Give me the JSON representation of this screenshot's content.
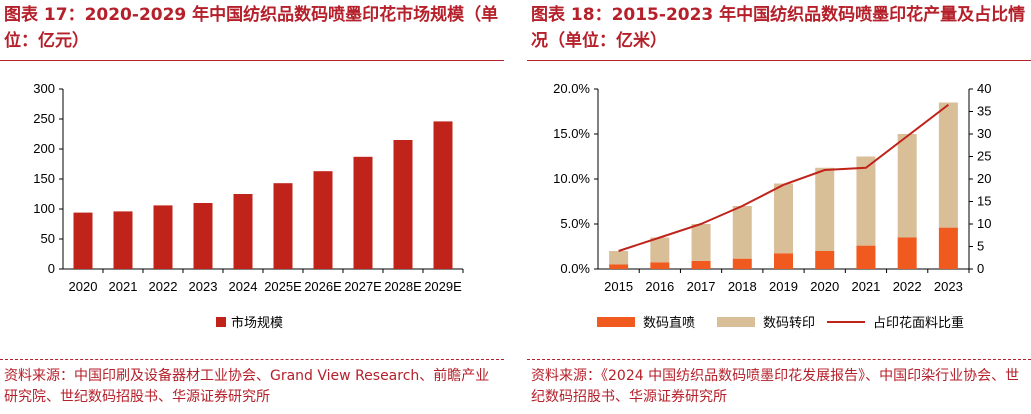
{
  "left": {
    "title": "图表 17：2020-2029 年中国纺织品数码喷墨印花市场规模（单位：亿元）",
    "source": "资料来源：中国印刷及设备器材工业协会、Grand View Research、前瞻产业研究院、世纪数码招股书、华源证券研究所",
    "chart_data": {
      "type": "bar",
      "title": "图表 17：2020-2029 年中国纺织品数码喷墨印花市场规模（单位：亿元）",
      "categories": [
        "2020",
        "2021",
        "2022",
        "2023",
        "2024",
        "2025E",
        "2026E",
        "2027E",
        "2028E",
        "2029E"
      ],
      "series": [
        {
          "name": "市场规模",
          "values": [
            94,
            96,
            106,
            110,
            125,
            143,
            163,
            187,
            215,
            246
          ],
          "color": "#c0231a"
        }
      ],
      "yticks": [
        "0",
        "50",
        "100",
        "150",
        "200",
        "250",
        "300"
      ],
      "ylim": [
        0,
        300
      ],
      "legend": "bottom-center",
      "grid": false
    }
  },
  "right": {
    "title": "图表 18：2015-2023 年中国纺织品数码喷墨印花产量及占比情况（单位：亿米）",
    "source": "资料来源：《2024 中国纺织品数码喷墨印花发展报告》、中国印染行业协会、世纪数码招股书、华源证券研究所",
    "chart_data": {
      "type": "bar",
      "title": "图表 18：2015-2023 年中国纺织品数码喷墨印花产量及占比情况（单位：亿米）",
      "categories": [
        "2015",
        "2016",
        "2017",
        "2018",
        "2019",
        "2020",
        "2021",
        "2022",
        "2023"
      ],
      "stacked": true,
      "series": [
        {
          "name": "数码直喷",
          "type": "bar",
          "axis": "right",
          "values": [
            1.0,
            1.5,
            1.8,
            2.3,
            3.5,
            4.0,
            5.2,
            7.0,
            9.2
          ],
          "color": "#f15a1f"
        },
        {
          "name": "数码转印",
          "type": "bar",
          "axis": "right",
          "values": [
            3.0,
            5.5,
            8.2,
            11.7,
            15.5,
            18.5,
            19.8,
            23.0,
            27.8
          ],
          "color": "#d9bf98"
        },
        {
          "name": "占印花面料比重",
          "type": "line",
          "axis": "left",
          "values": [
            4.0,
            7.0,
            10.0,
            14.0,
            18.7,
            22.0,
            22.5,
            29.5,
            36.5
          ],
          "color": "#c0231a"
        }
      ],
      "y_left_ticks": [
        "0.0%",
        "5.0%",
        "10.0%",
        "15.0%",
        "20.0%"
      ],
      "y_left_lim": [
        0,
        20
      ],
      "y_right_ticks": [
        "0",
        "5",
        "10",
        "15",
        "20",
        "25",
        "30",
        "35",
        "40"
      ],
      "y_right_lim": [
        0,
        40
      ],
      "legend": "bottom-center",
      "grid": false
    }
  }
}
